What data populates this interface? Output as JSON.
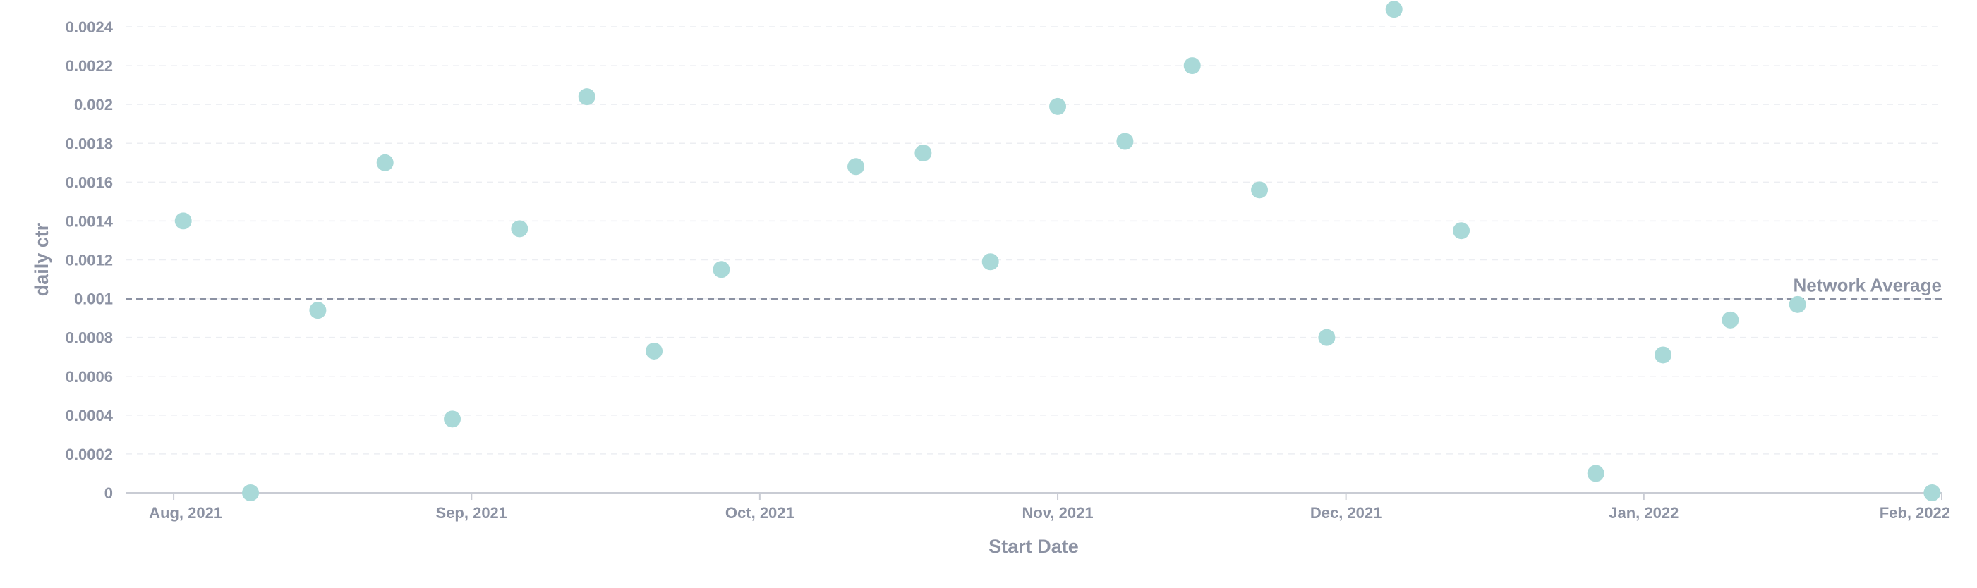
{
  "chart_data": {
    "type": "scatter",
    "xlabel": "Start Date",
    "ylabel": "daily ctr",
    "x_range": [
      "2021-07-27",
      "2022-02-01"
    ],
    "ylim": [
      0,
      0.0024
    ],
    "x_ticks": [
      {
        "date": "2021-08-01",
        "label": "Aug, 2021"
      },
      {
        "date": "2021-09-01",
        "label": "Sep, 2021"
      },
      {
        "date": "2021-10-01",
        "label": "Oct, 2021"
      },
      {
        "date": "2021-11-01",
        "label": "Nov, 2021"
      },
      {
        "date": "2021-12-01",
        "label": "Dec, 2021"
      },
      {
        "date": "2022-01-01",
        "label": "Jan, 2022"
      },
      {
        "date": "2022-02-01",
        "label": "Feb, 2022"
      }
    ],
    "y_ticks": [
      {
        "value": 0,
        "label": "0"
      },
      {
        "value": 0.0002,
        "label": "0.0002"
      },
      {
        "value": 0.0004,
        "label": "0.0004"
      },
      {
        "value": 0.0006,
        "label": "0.0006"
      },
      {
        "value": 0.0008,
        "label": "0.0008"
      },
      {
        "value": 0.001,
        "label": "0.001"
      },
      {
        "value": 0.0012,
        "label": "0.0012"
      },
      {
        "value": 0.0014,
        "label": "0.0014"
      },
      {
        "value": 0.0016,
        "label": "0.0016"
      },
      {
        "value": 0.0018,
        "label": "0.0018"
      },
      {
        "value": 0.002,
        "label": "0.002"
      },
      {
        "value": 0.0022,
        "label": "0.0022"
      },
      {
        "value": 0.0024,
        "label": "0.0024"
      }
    ],
    "grid": true,
    "series": [
      {
        "color": "#a9d9d8",
        "points": [
          {
            "x": "2021-08-02",
            "y": 0.0014
          },
          {
            "x": "2021-08-09",
            "y": 0.0
          },
          {
            "x": "2021-08-16",
            "y": 0.00094
          },
          {
            "x": "2021-08-23",
            "y": 0.0017
          },
          {
            "x": "2021-08-30",
            "y": 0.00038
          },
          {
            "x": "2021-09-06",
            "y": 0.00136
          },
          {
            "x": "2021-09-13",
            "y": 0.00204
          },
          {
            "x": "2021-09-20",
            "y": 0.00073
          },
          {
            "x": "2021-09-27",
            "y": 0.00115
          },
          {
            "x": "2021-10-11",
            "y": 0.00168
          },
          {
            "x": "2021-10-18",
            "y": 0.00175
          },
          {
            "x": "2021-10-25",
            "y": 0.00119
          },
          {
            "x": "2021-11-01",
            "y": 0.00199
          },
          {
            "x": "2021-11-08",
            "y": 0.00181
          },
          {
            "x": "2021-11-15",
            "y": 0.0022
          },
          {
            "x": "2021-11-22",
            "y": 0.00156
          },
          {
            "x": "2021-11-29",
            "y": 0.0008
          },
          {
            "x": "2021-12-06",
            "y": 0.00249
          },
          {
            "x": "2021-12-13",
            "y": 0.00135
          },
          {
            "x": "2021-12-27",
            "y": 0.0001
          },
          {
            "x": "2022-01-03",
            "y": 0.00071
          },
          {
            "x": "2022-01-10",
            "y": 0.00089
          },
          {
            "x": "2022-01-17",
            "y": 0.00097
          },
          {
            "x": "2022-01-31",
            "y": 0.0
          }
        ]
      }
    ],
    "reference_line": {
      "label": "Network Average",
      "value": 0.001,
      "style": "dashed",
      "color": "#8c92a3"
    }
  }
}
